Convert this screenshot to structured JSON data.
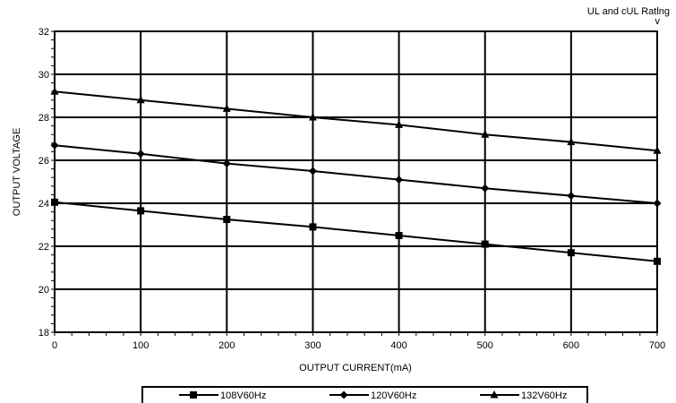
{
  "header": {
    "rating_line1": "UL and cUL Ratlng",
    "rating_line2": "v"
  },
  "chart_data": {
    "type": "line",
    "title": "",
    "xlabel": "OUTPUT CURRENT(mA)",
    "ylabel": "OUTPUT VOLTAGE",
    "xlim": [
      0,
      700
    ],
    "ylim": [
      18,
      32
    ],
    "xticks": [
      0,
      100,
      200,
      300,
      400,
      500,
      600,
      700
    ],
    "yticks": [
      18,
      20,
      22,
      24,
      26,
      28,
      30,
      32
    ],
    "grid": true,
    "legend": "bottom",
    "x": [
      0,
      100,
      200,
      300,
      400,
      500,
      600,
      700
    ],
    "series": [
      {
        "name": "108V60Hz",
        "marker": "square",
        "color": "#000000",
        "values": [
          24.05,
          23.65,
          23.25,
          22.9,
          22.5,
          22.1,
          21.7,
          21.3
        ]
      },
      {
        "name": "120V60Hz",
        "marker": "diamond",
        "color": "#000000",
        "values": [
          26.7,
          26.3,
          25.85,
          25.5,
          25.1,
          24.7,
          24.35,
          24.0
        ]
      },
      {
        "name": "132V60Hz",
        "marker": "triangle",
        "color": "#000000",
        "values": [
          29.2,
          28.8,
          28.4,
          28.0,
          27.65,
          27.2,
          26.85,
          26.45
        ]
      }
    ]
  }
}
